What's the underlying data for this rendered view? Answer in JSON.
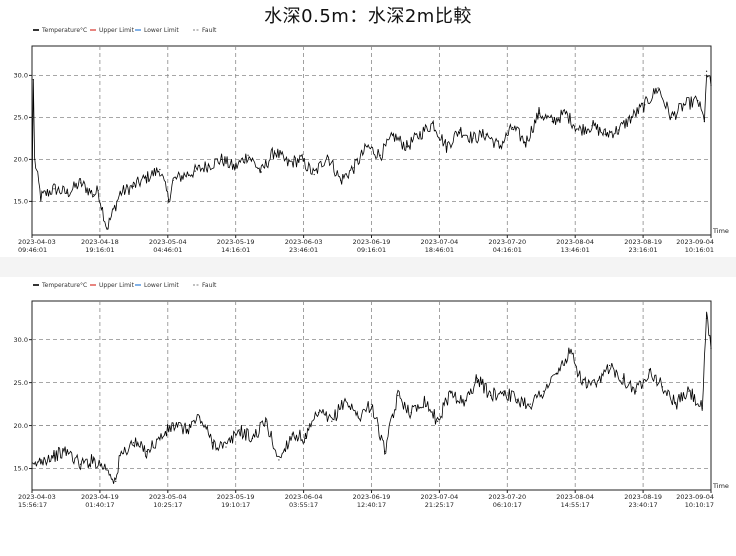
{
  "title": "水深0.5m：水深2m比較",
  "chart_data": [
    {
      "type": "line",
      "legend": [
        "Temperature°C",
        "Upper Limit",
        "Lower Limit",
        "Fault"
      ],
      "legend_colors": [
        "#000000",
        "#d9342b",
        "#2f7fd8",
        "#9a9a9a"
      ],
      "xlabel": "Time",
      "ylim": [
        11.0,
        33.5
      ],
      "yticks": [
        15.0,
        20.0,
        25.0,
        30.0
      ],
      "ytick_labels": [
        "15.0",
        "20.0",
        "25.0",
        "30.0"
      ],
      "x_tick_labels": [
        [
          "2023-04-03",
          "09:46:01"
        ],
        [
          "2023-04-18",
          "19:16:01"
        ],
        [
          "2023-05-04",
          "04:46:01"
        ],
        [
          "2023-05-19",
          "14:16:01"
        ],
        [
          "2023-06-03",
          "23:46:01"
        ],
        [
          "2023-06-19",
          "09:16:01"
        ],
        [
          "2023-07-04",
          "18:46:01"
        ],
        [
          "2023-07-20",
          "04:16:01"
        ],
        [
          "2023-08-04",
          "13:46:01"
        ],
        [
          "2023-08-19",
          "23:16:01"
        ],
        [
          "2023-09-04",
          "10:16:01"
        ]
      ],
      "grid": true,
      "x_day": [
        0,
        0.3,
        0.6,
        2,
        5,
        8,
        11,
        14,
        15,
        17,
        20,
        23,
        26,
        29,
        31,
        32,
        34,
        37,
        40,
        43,
        46,
        49,
        52,
        55,
        58,
        61,
        64,
        67,
        70,
        73,
        76,
        79,
        82,
        85,
        88,
        91,
        94,
        97,
        100,
        103,
        106,
        109,
        112,
        115,
        118,
        121,
        124,
        127,
        130,
        133,
        136,
        139,
        142,
        145,
        148,
        151,
        152.5,
        153,
        154
      ],
      "y": [
        15.0,
        29.5,
        20.0,
        15.5,
        16.5,
        16.0,
        17.2,
        15.8,
        16.3,
        11.8,
        16.0,
        16.8,
        17.8,
        18.8,
        15.2,
        17.5,
        18.0,
        18.6,
        19.3,
        20.0,
        19.0,
        20.5,
        18.5,
        21.0,
        19.5,
        20.0,
        18.2,
        20.5,
        17.5,
        19.0,
        21.5,
        20.5,
        22.8,
        21.5,
        23.0,
        24.3,
        21.5,
        23.5,
        22.5,
        23.0,
        21.5,
        23.8,
        22.0,
        25.5,
        24.5,
        25.5,
        23.5,
        24.0,
        23.0,
        23.5,
        25.0,
        26.5,
        28.5,
        25.0,
        26.5,
        27.0,
        24.5,
        30.5,
        28.8
      ]
    },
    {
      "type": "line",
      "legend": [
        "Temperature°C",
        "Upper Limit",
        "Lower Limit",
        "Fault"
      ],
      "legend_colors": [
        "#000000",
        "#d9342b",
        "#2f7fd8",
        "#9a9a9a"
      ],
      "xlabel": "Time",
      "ylim": [
        12.5,
        34.5
      ],
      "yticks": [
        15.0,
        20.0,
        25.0,
        30.0
      ],
      "ytick_labels": [
        "15.0",
        "20.0",
        "25.0",
        "30.0"
      ],
      "x_tick_labels": [
        [
          "2023-04-03",
          "15:56:17"
        ],
        [
          "2023-04-19",
          "01:40:17"
        ],
        [
          "2023-05-04",
          "10:25:17"
        ],
        [
          "2023-05-19",
          "19:10:17"
        ],
        [
          "2023-06-04",
          "03:55:17"
        ],
        [
          "2023-06-19",
          "12:40:17"
        ],
        [
          "2023-07-04",
          "21:25:17"
        ],
        [
          "2023-07-20",
          "06:10:17"
        ],
        [
          "2023-08-04",
          "14:55:17"
        ],
        [
          "2023-08-19",
          "23:40:17"
        ],
        [
          "2023-09-04",
          "10:10:17"
        ]
      ],
      "grid": true,
      "x_day": [
        0,
        2,
        5,
        8,
        11,
        14,
        17,
        19,
        20,
        23,
        26,
        29,
        32,
        35,
        38,
        41,
        44,
        47,
        50,
        53,
        56,
        59,
        62,
        65,
        68,
        71,
        74,
        77,
        80,
        83,
        86,
        89,
        92,
        95,
        98,
        101,
        104,
        107,
        110,
        113,
        116,
        119,
        122,
        125,
        128,
        131,
        134,
        137,
        140,
        143,
        146,
        149,
        152,
        153,
        154
      ],
      "y": [
        15.0,
        16.0,
        16.5,
        17.0,
        15.5,
        16.0,
        15.0,
        13.5,
        16.5,
        18.0,
        17.0,
        18.5,
        20.0,
        19.5,
        21.0,
        18.0,
        17.5,
        19.5,
        18.5,
        20.5,
        16.0,
        19.0,
        18.5,
        21.5,
        20.5,
        23.0,
        21.0,
        22.5,
        17.0,
        23.5,
        21.5,
        23.0,
        20.5,
        24.0,
        22.5,
        25.5,
        23.5,
        24.0,
        23.0,
        22.5,
        24.0,
        26.0,
        28.5,
        25.0,
        24.5,
        27.0,
        25.5,
        24.0,
        26.5,
        24.5,
        22.5,
        24.0,
        22.0,
        32.5,
        29.0
      ]
    }
  ]
}
